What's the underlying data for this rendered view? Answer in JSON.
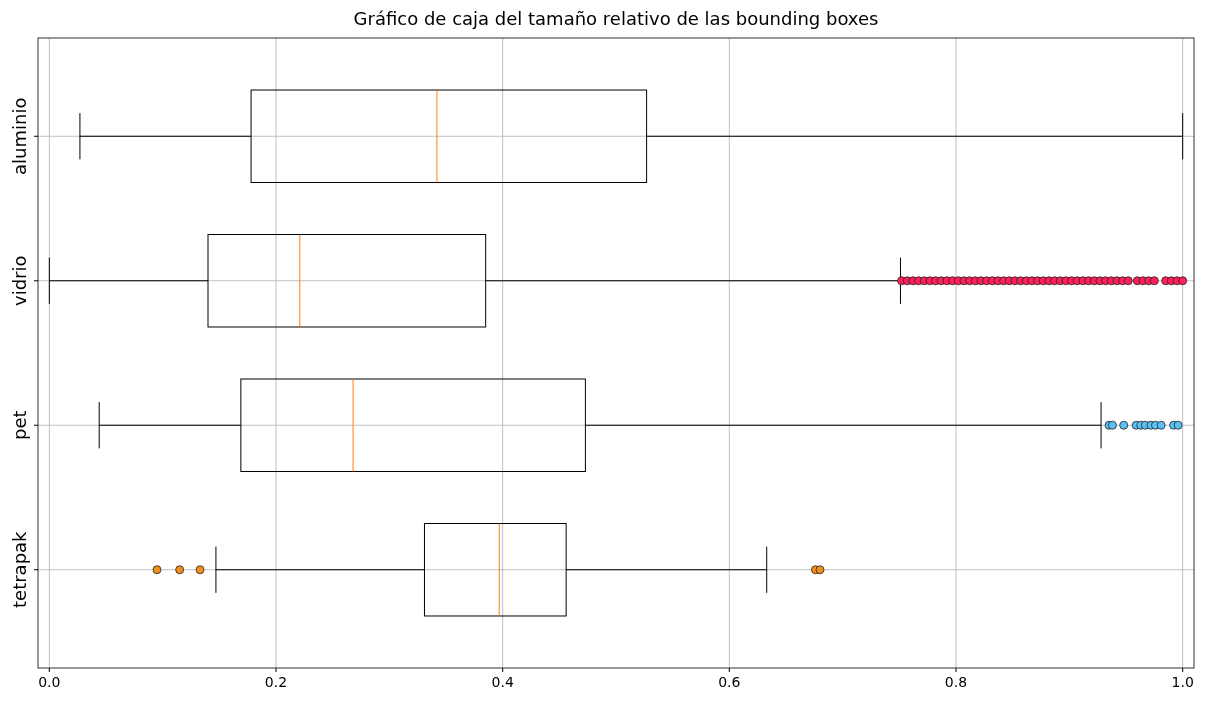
{
  "chart_data": {
    "type": "box",
    "orientation": "horizontal",
    "title": "Gráfico de caja del tamaño relativo de las bounding boxes",
    "categories": [
      "aluminio",
      "vidrio",
      "pet",
      "tetrapak"
    ],
    "boxes": [
      {
        "low": 0.027,
        "q1": 0.178,
        "median": 0.342,
        "q3": 0.527,
        "high": 1.0
      },
      {
        "low": 0.0,
        "q1": 0.14,
        "median": 0.221,
        "q3": 0.385,
        "high": 0.751
      },
      {
        "low": 0.044,
        "q1": 0.169,
        "median": 0.268,
        "q3": 0.473,
        "high": 0.928
      },
      {
        "low": 0.147,
        "q1": 0.331,
        "median": 0.397,
        "q3": 0.456,
        "high": 0.633
      }
    ],
    "colors": [
      "#000000",
      "#000000",
      "#000000",
      "#000000"
    ],
    "series": [
      {
        "type": "scatter",
        "color": "#ff1f5b",
        "x": [
          "vidrio",
          "vidrio",
          "vidrio",
          "vidrio",
          "vidrio",
          "vidrio",
          "vidrio",
          "vidrio",
          "vidrio",
          "vidrio",
          "vidrio",
          "vidrio",
          "vidrio",
          "vidrio",
          "vidrio",
          "vidrio",
          "vidrio",
          "vidrio",
          "vidrio",
          "vidrio",
          "vidrio",
          "vidrio",
          "vidrio",
          "vidrio",
          "vidrio",
          "vidrio",
          "vidrio",
          "vidrio",
          "vidrio",
          "vidrio",
          "vidrio",
          "vidrio",
          "vidrio",
          "vidrio",
          "vidrio",
          "vidrio",
          "vidrio",
          "vidrio",
          "vidrio",
          "vidrio",
          "vidrio",
          "vidrio",
          "vidrio",
          "vidrio",
          "vidrio",
          "vidrio",
          "vidrio",
          "vidrio",
          "vidrio"
        ],
        "values": [
          0.752,
          0.757,
          0.762,
          0.767,
          0.772,
          0.777,
          0.782,
          0.787,
          0.792,
          0.797,
          0.802,
          0.807,
          0.812,
          0.817,
          0.822,
          0.827,
          0.832,
          0.837,
          0.842,
          0.847,
          0.852,
          0.857,
          0.862,
          0.867,
          0.872,
          0.877,
          0.882,
          0.887,
          0.892,
          0.897,
          0.902,
          0.907,
          0.912,
          0.917,
          0.922,
          0.927,
          0.932,
          0.937,
          0.942,
          0.947,
          0.952,
          0.96,
          0.965,
          0.97,
          0.975,
          0.985,
          0.99,
          0.995,
          1.0
        ]
      },
      {
        "type": "scatter",
        "color": "#5bc0f5",
        "x": [
          "pet",
          "pet",
          "pet",
          "pet",
          "pet",
          "pet",
          "pet",
          "pet",
          "pet",
          "pet",
          "pet"
        ],
        "values": [
          0.935,
          0.938,
          0.948,
          0.959,
          0.963,
          0.967,
          0.972,
          0.976,
          0.981,
          0.992,
          0.996
        ]
      },
      {
        "type": "scatter",
        "color": "#f28e1c",
        "x": [
          "tetrapak",
          "tetrapak",
          "tetrapak",
          "tetrapak",
          "tetrapak"
        ],
        "values": [
          0.095,
          0.115,
          0.133,
          0.676,
          0.68
        ]
      }
    ],
    "xlim": [
      -0.01,
      1.01
    ],
    "xticks": [
      {
        "value": 0,
        "label": "0.0"
      },
      0.2,
      0.4,
      0.6,
      0.8,
      {
        "value": 1,
        "label": "1.0"
      }
    ],
    "grid": true
  }
}
